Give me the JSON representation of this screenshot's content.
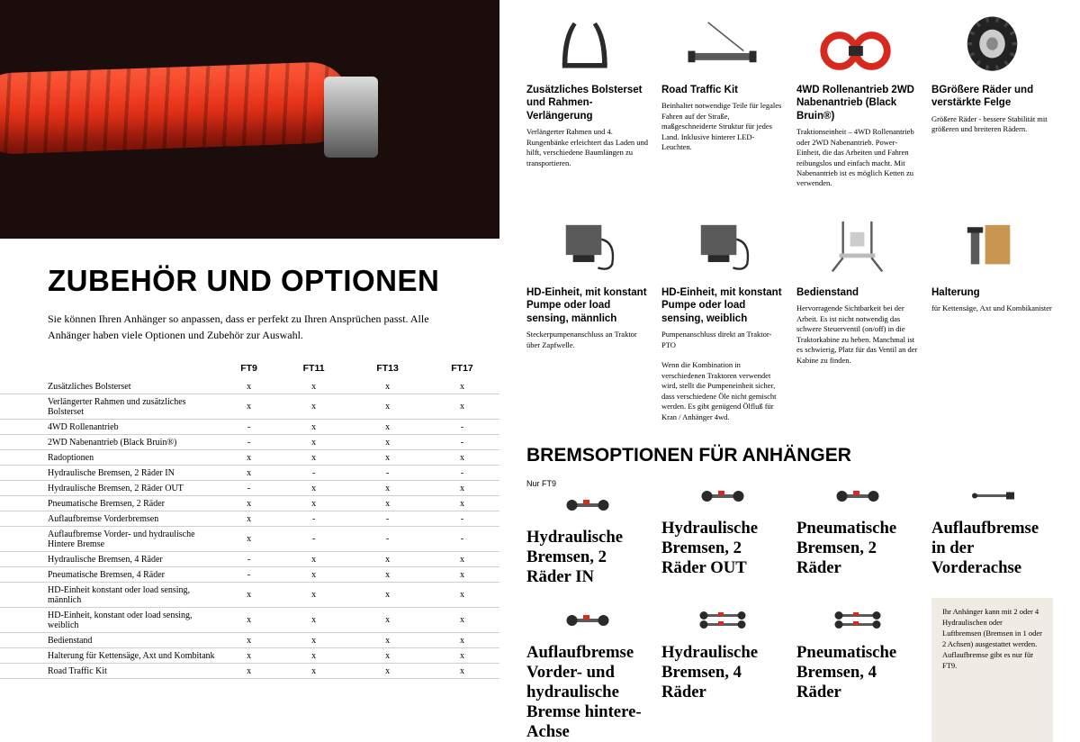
{
  "main_title": "ZUBEHÖR UND OPTIONEN",
  "intro": "Sie können Ihren Anhänger so anpassen, dass er perfekt zu Ihren Ansprüchen passt. Alle Anhänger haben viele Optionen und Zubehör zur Auswahl.",
  "table": {
    "headers": [
      "",
      "FT9",
      "FT11",
      "FT13",
      "FT17"
    ],
    "rows": [
      {
        "label": "Zusätzliches Bolsterset",
        "v": [
          "x",
          "x",
          "x",
          "x"
        ]
      },
      {
        "label": "Verlängerter Rahmen und zusätzliches Bolsterset",
        "v": [
          "x",
          "x",
          "x",
          "x"
        ]
      },
      {
        "label": "4WD Rollenantrieb",
        "v": [
          "-",
          "x",
          "x",
          "-"
        ]
      },
      {
        "label": "2WD Nabenantrieb (Black Bruin®)",
        "v": [
          "-",
          "x",
          "x",
          "-"
        ]
      },
      {
        "label": "Radoptionen",
        "v": [
          "x",
          "x",
          "x",
          "x"
        ]
      },
      {
        "label": "Hydraulische Bremsen, 2 Räder IN",
        "v": [
          "x",
          "-",
          "-",
          "-"
        ]
      },
      {
        "label": "Hydraulische Bremsen, 2 Räder OUT",
        "v": [
          "-",
          "x",
          "x",
          "x"
        ]
      },
      {
        "label": "Pneumatische Bremsen, 2 Räder",
        "v": [
          "x",
          "x",
          "x",
          "x"
        ]
      },
      {
        "label": "Auflaufbremse Vorderbremsen",
        "v": [
          "x",
          "-",
          "-",
          "-"
        ]
      },
      {
        "label": "Auflaufbremse Vorder- und hydraulische Hintere Bremse",
        "v": [
          "x",
          "-",
          "-",
          "-"
        ]
      },
      {
        "label": "Hydraulische Bremsen, 4 Räder",
        "v": [
          "-",
          "x",
          "x",
          "x"
        ]
      },
      {
        "label": "Pneumatische Bremsen, 4 Räder",
        "v": [
          "-",
          "x",
          "x",
          "x"
        ]
      },
      {
        "label": "HD-Einheit konstant  oder load sensing, männlich",
        "v": [
          "x",
          "x",
          "x",
          "x"
        ]
      },
      {
        "label": "HD-Einheit, konstant oder load sensing, weiblich",
        "v": [
          "x",
          "x",
          "x",
          "x"
        ]
      },
      {
        "label": "Bedienstand",
        "v": [
          "x",
          "x",
          "x",
          "x"
        ]
      },
      {
        "label": "Halterung für Kettensäge, Axt und Kombitank",
        "v": [
          "x",
          "x",
          "x",
          "x"
        ]
      },
      {
        "label": "Road Traffic Kit",
        "v": [
          "x",
          "x",
          "x",
          "x"
        ]
      }
    ]
  },
  "cards1": [
    {
      "title": "Zusätzliches Bolsterset und Rahmen-Verlängerung",
      "desc": "Verlängerter Rahmen und 4. Rungenbänke erleichtert das Laden und hilft, verschiedene Baumlängen zu transportieren.",
      "icon": "bolster"
    },
    {
      "title": "Road Traffic Kit",
      "desc": "Beinhaltet notwendige Teile für legales Fahren auf der Straße, maßgeschneiderte Struktur für jedes Land. Inklusive hinterer LED-Leuchten.",
      "icon": "roadkit"
    },
    {
      "title": "4WD Rollenantrieb 2WD Nabenantrieb (Black Bruin®)",
      "desc": "Traktionseinheit – 4WD Rollenantrieb oder 2WD Nabenantrieb. Power-Einheit, die das Arbeiten und Fahren reibungslos und einfach macht. Mit Nabenantrieb ist es möglich Ketten zu verwenden.",
      "icon": "wheeldrive"
    },
    {
      "title": "BGrößere Räder und verstärkte Felge",
      "desc": "Größere Räder - bessere Stabilität mit größeren und breiteren Rädern.",
      "icon": "tire"
    }
  ],
  "cards2": [
    {
      "title": "HD-Einheit, mit konstant Pumpe oder load sensing, männlich",
      "desc": "Steckerpumpenanschluss an Traktor über Zapfwelle.",
      "icon": "hdunit"
    },
    {
      "title": "HD-Einheit, mit konstant Pumpe oder load sensing, weiblich",
      "desc": "Pumpenanschluss direkt an Traktor-PTO\n\nWenn die Kombination in verschiedenen Traktoren verwendet wird, stellt die Pumpeneinheit sicher, dass verschiedene Öle nicht gemischt werden. Es gibt genügend Ölfluß für Kran / Anhänger 4wd.",
      "icon": "hdunit"
    },
    {
      "title": "Bedienstand",
      "desc": "Hervorragende Sichtbarkeit bei der Arbeit. Es ist nicht notwendig das schwere Steuerventil (on/off) in die Traktorkabine zu heben. Manchmal ist es schwierig, Platz für das Ventil an der Kabine zu finden.",
      "icon": "stand"
    },
    {
      "title": "Halterung",
      "desc": "für Kettensäge, Axt und Kombikanister",
      "icon": "holder"
    }
  ],
  "sub_title": "BREMSOPTIONEN FÜR ANHÄNGER",
  "brake_tag": "Nur FT9",
  "brakes1": [
    {
      "title": "Hydraulische Bremsen, 2 Räder IN",
      "icon": "axle"
    },
    {
      "title": "Hydraulische Bremsen, 2 Räder OUT",
      "icon": "axle"
    },
    {
      "title": "Pneumatische Bremsen, 2 Räder",
      "icon": "axle"
    },
    {
      "title": "Auflaufbremse in der Vorderachse",
      "icon": "bar"
    }
  ],
  "brakes2": [
    {
      "title": "Auflaufbremse Vorder- und hydraulische Bremse hintere- Achse",
      "icon": "axle"
    },
    {
      "title": "Hydraulische Bremsen, 4 Räder",
      "icon": "axle2"
    },
    {
      "title": "Pneumatische Bremsen, 4 Räder",
      "icon": "axle2"
    }
  ],
  "info_box": "Ihr Anhänger kann mit 2 oder 4 Hydraulischen oder Luftbremsen (Bremsen in 1 oder 2 Achsen) ausgestattet werden. Auflaufbremse gibt es nur für FT9.",
  "colors": {
    "brand_red": "#d7291e",
    "gray": "#5a5a5a",
    "dark": "#2a2a2a"
  }
}
